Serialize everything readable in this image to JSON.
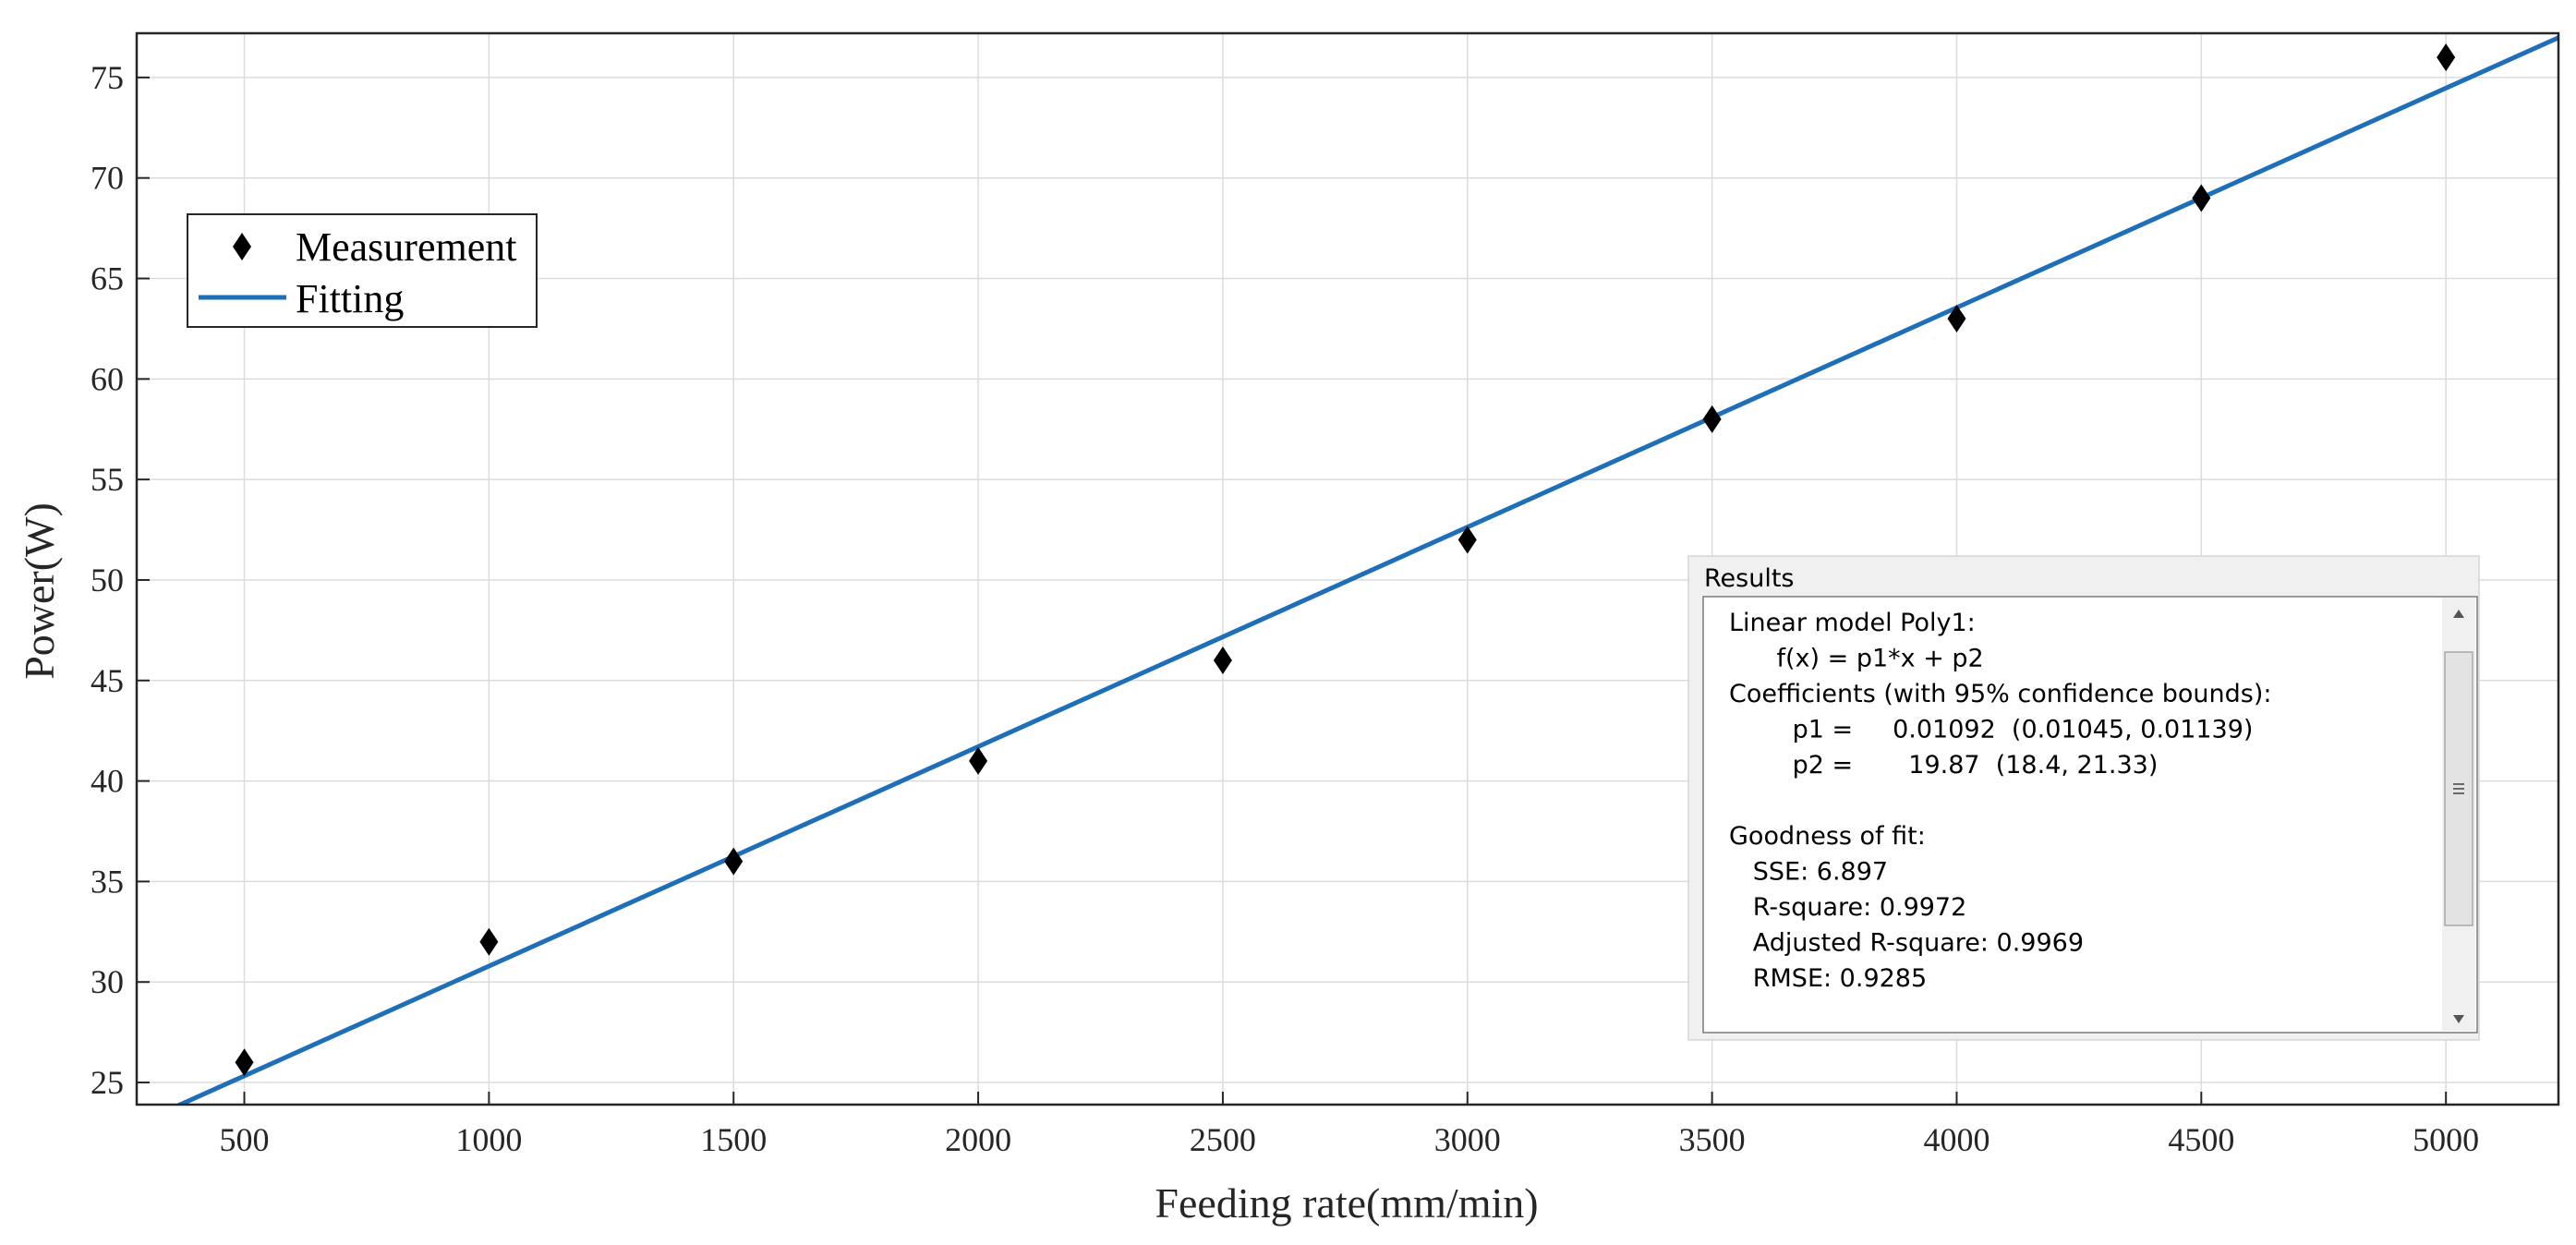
{
  "chart_data": {
    "type": "scatter",
    "xlabel": "Feeding rate(mm/min)",
    "ylabel": "Power(W)",
    "xlim": [
      280,
      5230
    ],
    "ylim": [
      23.9,
      77.2
    ],
    "xticks": [
      500,
      1000,
      1500,
      2000,
      2500,
      3000,
      3500,
      4000,
      4500,
      5000
    ],
    "yticks": [
      25,
      30,
      35,
      40,
      45,
      50,
      55,
      60,
      65,
      70,
      75
    ],
    "grid": true,
    "legend_position": "top-left",
    "series": [
      {
        "name": "Measurement",
        "kind": "scatter",
        "marker": "diamond",
        "color": "#000000",
        "x": [
          500,
          1000,
          1500,
          2000,
          2500,
          3000,
          3500,
          4000,
          4500,
          5000
        ],
        "y": [
          26,
          32,
          36,
          41,
          46,
          52,
          58,
          63,
          69,
          76
        ]
      },
      {
        "name": "Fitting",
        "kind": "line",
        "color": "#1f6fb8",
        "slope": 0.01092,
        "intercept": 19.87,
        "x": [
          350,
          5230
        ]
      }
    ]
  },
  "results": {
    "title": "Results",
    "lines": [
      "Linear model Poly1:",
      "      f(x) = p1*x + p2",
      "Coefficients (with 95% confidence bounds):",
      "        p1 =     0.01092  (0.01045, 0.01139)",
      "        p2 =       19.87  (18.4, 21.33)",
      "",
      "Goodness of fit:",
      "   SSE: 6.897",
      "   R-square: 0.9972",
      "   Adjusted R-square: 0.9969",
      "   RMSE: 0.9285"
    ]
  },
  "colors": {
    "axis": "#262626",
    "grid": "#dcdcdc",
    "fit_line": "#1f6fb8",
    "marker": "#000000",
    "panel_bg": "#f0f0f0"
  }
}
